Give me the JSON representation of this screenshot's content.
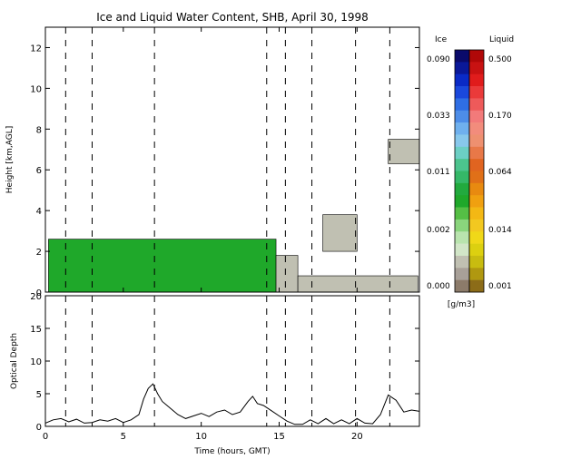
{
  "title": "Ice and Liquid Water Content, SHB, April 30, 1998",
  "top_panel": {
    "ylabel": "Height [km,AGL]",
    "yticks": [
      0,
      2,
      4,
      6,
      8,
      10,
      12
    ]
  },
  "bottom_panel": {
    "ylabel": "Optical Depth",
    "yticks": [
      0,
      5,
      10,
      15,
      20
    ]
  },
  "xlabel": "Time (hours, GMT)",
  "xticks": [
    0,
    5,
    10,
    15,
    20
  ],
  "colorbar": {
    "ice_label": "Ice",
    "liquid_label": "Liquid",
    "units": "[g/m3]",
    "ice_ticks": [
      "0.090",
      "0.033",
      "0.011",
      "0.002",
      "0.000"
    ],
    "liquid_ticks": [
      "0.500",
      "0.170",
      "0.064",
      "0.014",
      "0.001"
    ],
    "ice_colors": [
      "#0a0a6a",
      "#0a1898",
      "#0a2ac6",
      "#1a48dc",
      "#2f6ee4",
      "#4d8de8",
      "#6fb0ee",
      "#88c8ec",
      "#6ccfc4",
      "#4cc48e",
      "#35b868",
      "#22aa3e",
      "#1fa82a",
      "#55bf45",
      "#8ad57d",
      "#b9e4ae",
      "#d2e6c8",
      "#c0c0b2",
      "#a8a098",
      "#8c7b6a"
    ],
    "liquid_colors": [
      "#b00808",
      "#c81212",
      "#e01c1c",
      "#ea3a3a",
      "#ee5a5a",
      "#f27a7a",
      "#f28c7c",
      "#ee9070",
      "#e87848",
      "#e06420",
      "#e07018",
      "#e88a10",
      "#f0a010",
      "#f3b814",
      "#f2c820",
      "#f0d818",
      "#dcd010",
      "#c8bc10",
      "#b09810",
      "#8c6c18"
    ]
  },
  "chart_data": [
    {
      "type": "heatmap",
      "title": "Ice and Liquid Water Content, SHB, April 30, 1998",
      "xlabel": "Time (hours, GMT)",
      "ylabel": "Height [km,AGL]",
      "xlim": [
        0,
        24
      ],
      "ylim": [
        0,
        13
      ],
      "dashed_time_markers": [
        1.3,
        3.0,
        7.0,
        14.2,
        15.4,
        17.1,
        19.9,
        22.1
      ],
      "cloud_layers": [
        {
          "start": 0.2,
          "end": 14.8,
          "base": 0.0,
          "top": 2.6,
          "phase": "ice/mixed",
          "dominant_ice_gm3": 0.002
        },
        {
          "start": 14.8,
          "end": 16.2,
          "base": 0.0,
          "top": 1.8,
          "phase": "mixed",
          "dominant_ice_gm3": 0.0
        },
        {
          "start": 16.2,
          "end": 23.9,
          "base": 0.0,
          "top": 0.8,
          "phase": "mixed",
          "dominant_ice_gm3": 0.0
        },
        {
          "start": 17.8,
          "end": 20.0,
          "base": 2.0,
          "top": 3.8,
          "phase": "ice",
          "dominant_ice_gm3": 0.0
        },
        {
          "start": 22.0,
          "end": 24.0,
          "base": 6.3,
          "top": 7.5,
          "phase": "ice",
          "dominant_ice_gm3": 0.0
        }
      ]
    },
    {
      "type": "line",
      "ylabel": "Optical Depth",
      "xlabel": "Time (hours, GMT)",
      "xlim": [
        0,
        24
      ],
      "ylim": [
        0,
        20
      ],
      "x": [
        0.0,
        0.5,
        1.0,
        1.5,
        2.0,
        2.5,
        3.0,
        3.5,
        4.0,
        4.5,
        5.0,
        5.5,
        6.0,
        6.3,
        6.6,
        6.9,
        7.2,
        7.5,
        8.0,
        8.5,
        9.0,
        9.5,
        10.0,
        10.5,
        11.0,
        11.5,
        12.0,
        12.5,
        13.0,
        13.3,
        13.6,
        14.0,
        14.5,
        15.0,
        15.5,
        16.0,
        16.5,
        17.0,
        17.5,
        18.0,
        18.5,
        19.0,
        19.5,
        20.0,
        20.5,
        21.0,
        21.5,
        22.0,
        22.5,
        23.0,
        23.5,
        24.0
      ],
      "y": [
        0.5,
        1.0,
        1.2,
        0.7,
        1.1,
        0.5,
        0.6,
        1.0,
        0.8,
        1.2,
        0.6,
        1.0,
        1.8,
        4.2,
        5.8,
        6.5,
        5.0,
        3.8,
        2.8,
        1.8,
        1.2,
        1.6,
        2.0,
        1.5,
        2.2,
        2.5,
        1.8,
        2.2,
        3.8,
        4.6,
        3.5,
        3.2,
        2.4,
        1.6,
        0.8,
        0.3,
        0.3,
        1.0,
        0.4,
        1.2,
        0.4,
        1.0,
        0.4,
        1.2,
        0.5,
        0.4,
        1.8,
        4.8,
        4.0,
        2.2,
        2.5,
        2.3
      ]
    }
  ]
}
